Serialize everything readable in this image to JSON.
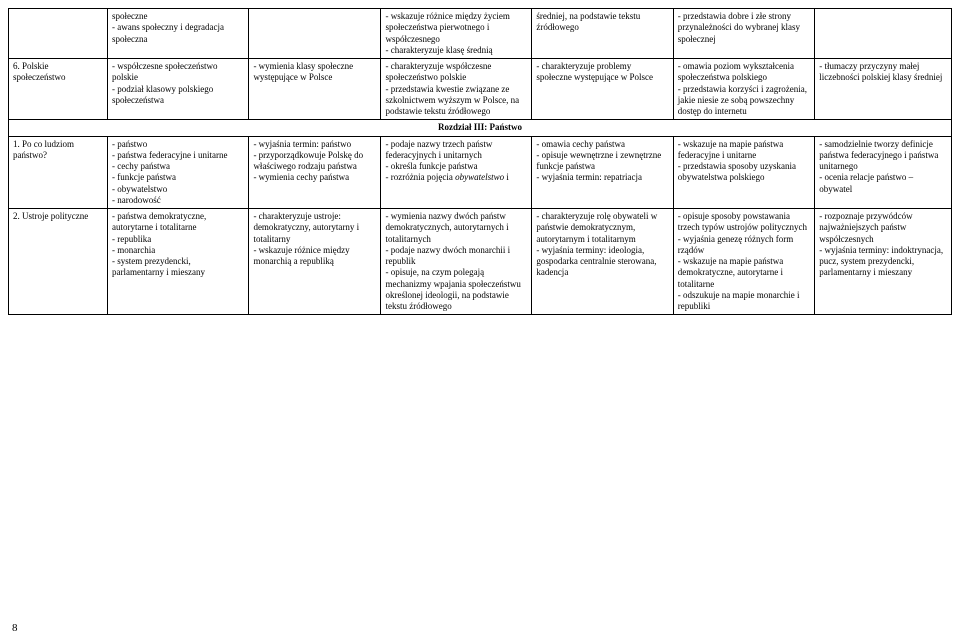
{
  "rows": [
    {
      "c1": "",
      "c2": "społeczne\n- awans społeczny i degradacja społeczna",
      "c3": "",
      "c4": "- wskazuje różnice między życiem społeczeństwa pierwotnego i współczesnego\n- charakteryzuje klasę średnią",
      "c5": "średniej, na podstawie tekstu źródłowego",
      "c6": "- przedstawia dobre i złe strony przynależności do wybranej klasy społecznej",
      "c7": ""
    },
    {
      "c1": "6. Polskie społeczeństwo",
      "c2": "- współczesne społeczeństwo polskie\n- podział klasowy polskiego społeczeństwa",
      "c3": "- wymienia klasy społeczne występujące w Polsce",
      "c4": "- charakteryzuje współczesne społeczeństwo polskie\n- przedstawia kwestie związane ze szkolnictwem wyższym w Polsce, na podstawie tekstu źródłowego",
      "c5": "- charakteryzuje problemy społeczne występujące w Polsce",
      "c6": "- omawia poziom wykształcenia społeczeństwa polskiego\n- przedstawia korzyści i zagrożenia, jakie niesie ze sobą powszechny dostęp do internetu",
      "c7": "- tłumaczy przyczyny małej liczebności polskiej klasy średniej"
    }
  ],
  "sectionHeader": "Rozdział III: Państwo",
  "rows2": [
    {
      "c1": "1. Po co ludziom państwo?",
      "c2": "- państwo\n- państwa federacyjne i unitarne\n- cechy państwa\n- funkcje państwa\n- obywatelstwo\n- narodowość",
      "c3": "- wyjaśnia termin: państwo\n- przyporządkowuje Polskę do właściwego rodzaju państwa\n- wymienia cechy państwa",
      "c4": "- podaje nazwy trzech państw federacyjnych i unitarnych\n- określa funkcje państwa\n- rozróżnia pojęcia obywatelstwo i narodowość",
      "c5": "- omawia cechy państwa\n- opisuje wewnętrzne i zewnętrzne funkcje państwa\n- wyjaśnia termin: repatriacja",
      "c6": "- wskazuje na mapie państwa federacyjne i unitarne\n- przedstawia sposoby uzyskania obywatelstwa polskiego",
      "c7": "- samodzielnie tworzy definicje państwa federacyjnego i państwa unitarnego\n- ocenia relacje państwo – obywatel"
    },
    {
      "c1": "2. Ustroje polityczne",
      "c2": "- państwa demokratyczne, autorytarne i totalitarne\n- republika\n- monarchia\n- system prezydencki, parlamentarny i mieszany",
      "c3": "- charakteryzuje ustroje: demokratyczny, autorytarny i totalitarny\n- wskazuje różnice między monarchią a republiką",
      "c4": "- wymienia nazwy dwóch państw demokratycznych, autorytarnych i totalitarnych\n- podaje nazwy dwóch monarchii i republik\n- opisuje, na czym polegają mechanizmy wpajania społeczeństwu określonej ideologii, na podstawie tekstu źródłowego",
      "c5": "- charakteryzuje rolę obywateli w państwie demokratycznym, autorytarnym i totalitarnym\n- wyjaśnia terminy: ideologia, gospodarka centralnie sterowana, kadencja",
      "c6": "- opisuje sposoby powstawania trzech typów ustrojów politycznych\n- wyjaśnia genezę różnych form rządów\n- wskazuje na mapie państwa demokratyczne, autorytarne i totalitarne\n- odszukuje na mapie monarchie i republiki",
      "c7": "- rozpoznaje przywódców najważniejszych państw współczesnych\n- wyjaśnia terminy: indoktrynacja, pucz, system prezydencki, parlamentarny i mieszany"
    }
  ],
  "pageNumber": "8"
}
